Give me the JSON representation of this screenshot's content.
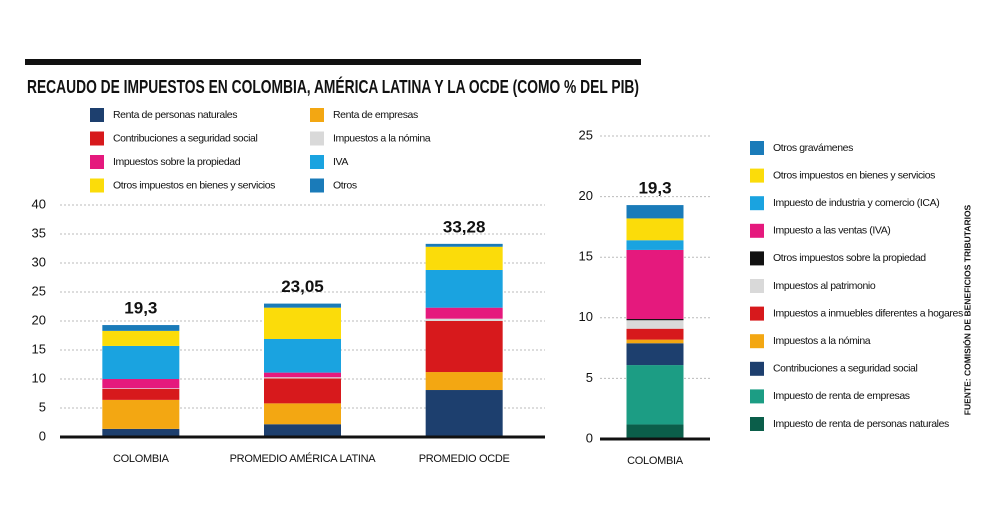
{
  "title": "RECAUDO DE IMPUESTOS EN COLOMBIA, AMÉRICA LATINA Y LA OCDE (COMO % DEL PIB)",
  "source": "FUENTE: COMISIÓN DE BENEFICIOS TRIBUTARIOS",
  "chart_data": [
    {
      "type": "bar",
      "stacked": true,
      "grid": true,
      "categories": [
        "COLOMBIA",
        "PROMEDIO AMÉRICA LATINA",
        "PROMEDIO OCDE"
      ],
      "ylim": [
        0,
        40
      ],
      "yticks": [
        0,
        5,
        10,
        15,
        20,
        25,
        30,
        35,
        40
      ],
      "totals": [
        19.3,
        23.05,
        33.28
      ],
      "total_labels": [
        "19,3",
        "23,05",
        "33,28"
      ],
      "series": [
        {
          "name": "Renta de personas naturales",
          "color": "#1d3f6e",
          "values": [
            1.4,
            2.2,
            8.1
          ]
        },
        {
          "name": "Renta de empresas",
          "color": "#f3a712",
          "values": [
            5.0,
            3.6,
            3.1
          ]
        },
        {
          "name": "Contribuciones a seguridad social",
          "color": "#d7191c",
          "values": [
            1.9,
            4.3,
            8.8
          ]
        },
        {
          "name": "Impuestos a la nómina",
          "color": "#d9d9d9",
          "values": [
            0.1,
            0.2,
            0.4
          ]
        },
        {
          "name": "Impuestos sobre la propiedad",
          "color": "#e5197d",
          "values": [
            1.6,
            0.8,
            1.9
          ]
        },
        {
          "name": "IVA",
          "color": "#1aa3e0",
          "values": [
            5.7,
            5.8,
            6.5
          ]
        },
        {
          "name": "Otros impuestos en bienes y servicios",
          "color": "#fbdc0a",
          "values": [
            2.6,
            5.4,
            4.0
          ]
        },
        {
          "name": "Otros",
          "color": "#1a7bb9",
          "values": [
            1.0,
            0.7,
            0.5
          ]
        }
      ]
    },
    {
      "type": "bar",
      "stacked": true,
      "grid": true,
      "categories": [
        "COLOMBIA"
      ],
      "ylim": [
        0,
        25
      ],
      "yticks": [
        0,
        5,
        10,
        15,
        20,
        25
      ],
      "totals": [
        19.3
      ],
      "total_labels": [
        "19,3"
      ],
      "series": [
        {
          "name": "Impuesto de renta de personas naturales",
          "color": "#0b5e4a",
          "values": [
            1.2
          ]
        },
        {
          "name": "Impuesto de renta de empresas",
          "color": "#1c9d84",
          "values": [
            4.9
          ]
        },
        {
          "name": "Contribuciones a seguridad social",
          "color": "#1d3f6e",
          "values": [
            1.8
          ]
        },
        {
          "name": "Impuestos a la nómina",
          "color": "#f3a712",
          "values": [
            0.3
          ]
        },
        {
          "name": "Impuestos a inmuebles diferentes a hogares",
          "color": "#d7191c",
          "values": [
            0.9
          ]
        },
        {
          "name": "Impuestos al patrimonio",
          "color": "#d9d9d9",
          "values": [
            0.7
          ]
        },
        {
          "name": "Otros impuestos sobre la propiedad",
          "color": "#111111",
          "values": [
            0.1
          ]
        },
        {
          "name": "Impuesto a las ventas (IVA)",
          "color": "#e5197d",
          "values": [
            5.7
          ]
        },
        {
          "name": "Impuesto de industria y comercio (ICA)",
          "color": "#1aa3e0",
          "values": [
            0.8
          ]
        },
        {
          "name": "Otros impuestos en bienes y servicios",
          "color": "#fbdc0a",
          "values": [
            1.8
          ]
        },
        {
          "name": "Otros gravámenes",
          "color": "#1a7bb9",
          "values": [
            1.1
          ]
        }
      ]
    }
  ]
}
